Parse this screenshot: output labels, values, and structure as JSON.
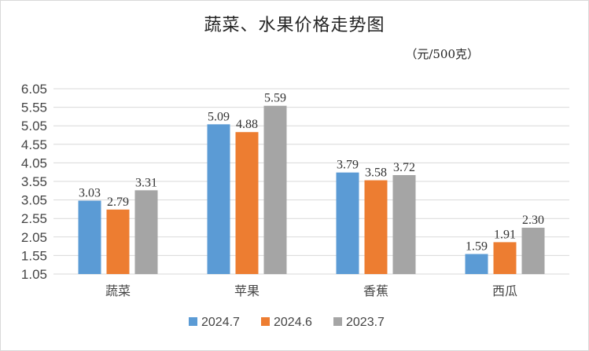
{
  "title": "蔬菜、水果价格走势图",
  "unit": "（元/500克）",
  "chart_data": {
    "type": "bar",
    "categories": [
      "蔬菜",
      "苹果",
      "香蕉",
      "西瓜"
    ],
    "series": [
      {
        "name": "2024.7",
        "color": "#5b9bd5",
        "values": [
          3.03,
          5.09,
          3.79,
          1.59
        ]
      },
      {
        "name": "2024.6",
        "color": "#ed7d31",
        "values": [
          2.79,
          4.88,
          3.58,
          1.91
        ]
      },
      {
        "name": "2023.7",
        "color": "#a5a5a5",
        "values": [
          3.31,
          5.59,
          3.72,
          2.3
        ]
      }
    ],
    "ylim": [
      1.05,
      6.05
    ],
    "yticks": [
      "6.05",
      "5.55",
      "5.05",
      "4.55",
      "4.05",
      "3.55",
      "3.05",
      "2.55",
      "2.05",
      "1.55",
      "1.05"
    ],
    "value_labels": [
      [
        "3.03",
        "5.09",
        "3.79",
        "1.59"
      ],
      [
        "2.79",
        "4.88",
        "3.58",
        "1.91"
      ],
      [
        "3.31",
        "5.59",
        "3.72",
        "2.30"
      ]
    ],
    "grid": true,
    "legend": "bottom"
  }
}
